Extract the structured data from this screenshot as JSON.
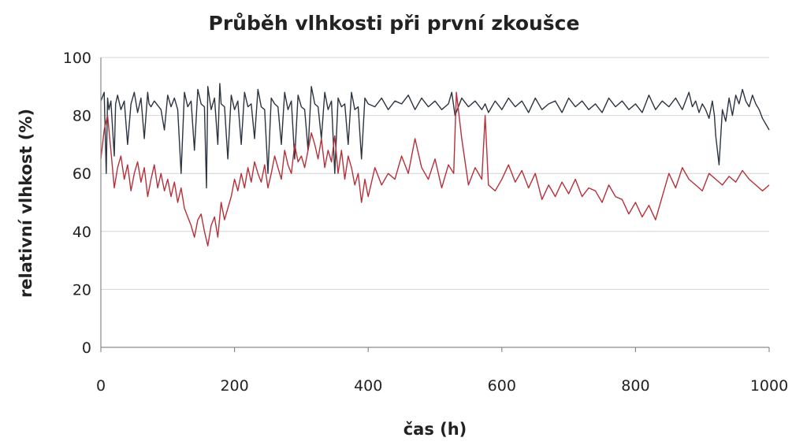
{
  "chart_data": {
    "type": "line",
    "title": "Průběh vlhkosti při první zkoušce",
    "xlabel": "čas (h)",
    "ylabel": "relativní vlhkost (%)",
    "xlim": [
      0,
      1000
    ],
    "ylim": [
      0,
      100
    ],
    "x_ticks": [
      0,
      200,
      400,
      600,
      800,
      1000
    ],
    "y_ticks": [
      0,
      20,
      40,
      60,
      80,
      100
    ],
    "grid": "horizontal",
    "legend": "none",
    "series": [
      {
        "color": "#2b3440",
        "x": [
          0,
          5,
          8,
          10,
          12,
          15,
          20,
          22,
          25,
          30,
          35,
          40,
          45,
          50,
          55,
          60,
          65,
          70,
          72,
          75,
          80,
          90,
          95,
          100,
          105,
          110,
          115,
          120,
          125,
          130,
          135,
          140,
          145,
          150,
          155,
          158,
          160,
          165,
          170,
          175,
          178,
          180,
          185,
          190,
          195,
          200,
          205,
          210,
          215,
          220,
          225,
          230,
          235,
          240,
          245,
          250,
          255,
          260,
          265,
          270,
          275,
          280,
          285,
          290,
          295,
          300,
          305,
          310,
          315,
          320,
          325,
          330,
          335,
          340,
          345,
          350,
          355,
          360,
          365,
          370,
          375,
          380,
          385,
          390,
          395,
          400,
          410,
          420,
          430,
          440,
          450,
          460,
          470,
          480,
          490,
          500,
          510,
          520,
          525,
          530,
          540,
          550,
          560,
          570,
          575,
          580,
          590,
          600,
          610,
          620,
          630,
          640,
          650,
          660,
          670,
          680,
          690,
          700,
          710,
          720,
          730,
          740,
          750,
          760,
          770,
          780,
          790,
          800,
          810,
          820,
          830,
          840,
          850,
          860,
          870,
          880,
          885,
          890,
          895,
          900,
          905,
          910,
          915,
          918,
          920,
          925,
          930,
          935,
          940,
          945,
          950,
          955,
          960,
          965,
          970,
          975,
          980,
          985,
          990,
          995,
          1000
        ],
        "y": [
          85,
          88,
          60,
          86,
          82,
          85,
          66,
          84,
          87,
          82,
          85,
          70,
          84,
          88,
          81,
          86,
          72,
          88,
          84,
          83,
          85,
          82,
          75,
          87,
          83,
          86,
          82,
          60,
          88,
          83,
          85,
          68,
          89,
          84,
          83,
          55,
          90,
          82,
          86,
          70,
          91,
          84,
          83,
          65,
          87,
          82,
          85,
          70,
          88,
          83,
          84,
          72,
          89,
          83,
          82,
          60,
          86,
          84,
          83,
          70,
          88,
          82,
          85,
          65,
          87,
          83,
          82,
          68,
          90,
          84,
          83,
          72,
          88,
          82,
          85,
          60,
          86,
          83,
          84,
          70,
          88,
          82,
          83,
          65,
          86,
          84,
          83,
          86,
          82,
          85,
          84,
          87,
          82,
          86,
          83,
          85,
          82,
          84,
          88,
          80,
          86,
          83,
          85,
          82,
          84,
          81,
          85,
          82,
          86,
          83,
          85,
          81,
          86,
          82,
          84,
          85,
          81,
          86,
          83,
          85,
          82,
          84,
          81,
          86,
          83,
          85,
          82,
          84,
          81,
          87,
          82,
          85,
          83,
          86,
          82,
          88,
          83,
          85,
          81,
          84,
          82,
          79,
          85,
          80,
          73,
          63,
          82,
          78,
          86,
          80,
          87,
          84,
          89,
          85,
          83,
          87,
          84,
          82,
          79,
          77,
          75
        ]
      },
      {
        "color": "#b6303a",
        "x": [
          0,
          5,
          10,
          15,
          20,
          25,
          30,
          35,
          40,
          45,
          50,
          55,
          60,
          65,
          70,
          75,
          80,
          85,
          90,
          95,
          100,
          105,
          110,
          115,
          120,
          125,
          130,
          135,
          140,
          145,
          150,
          155,
          160,
          165,
          170,
          175,
          180,
          185,
          190,
          195,
          200,
          205,
          210,
          215,
          220,
          225,
          230,
          235,
          240,
          245,
          250,
          255,
          260,
          265,
          270,
          275,
          280,
          285,
          290,
          295,
          300,
          305,
          310,
          315,
          320,
          325,
          330,
          335,
          340,
          345,
          350,
          355,
          360,
          365,
          370,
          375,
          380,
          385,
          390,
          395,
          400,
          410,
          420,
          430,
          440,
          450,
          460,
          470,
          480,
          490,
          500,
          510,
          520,
          528,
          532,
          540,
          550,
          560,
          570,
          575,
          580,
          590,
          600,
          610,
          620,
          630,
          640,
          650,
          660,
          670,
          680,
          690,
          700,
          710,
          720,
          730,
          740,
          750,
          760,
          770,
          780,
          790,
          800,
          810,
          820,
          830,
          840,
          850,
          860,
          870,
          880,
          890,
          900,
          910,
          920,
          930,
          940,
          950,
          960,
          970,
          980,
          990,
          1000
        ],
        "y": [
          65,
          75,
          80,
          68,
          55,
          62,
          66,
          58,
          63,
          54,
          60,
          64,
          57,
          62,
          52,
          58,
          63,
          55,
          60,
          54,
          58,
          52,
          57,
          50,
          55,
          48,
          45,
          42,
          38,
          44,
          46,
          40,
          35,
          42,
          45,
          38,
          50,
          44,
          48,
          52,
          58,
          54,
          60,
          55,
          62,
          57,
          64,
          60,
          57,
          63,
          55,
          60,
          66,
          62,
          58,
          68,
          63,
          60,
          70,
          64,
          66,
          62,
          68,
          74,
          70,
          65,
          72,
          62,
          68,
          64,
          73,
          60,
          68,
          58,
          66,
          62,
          56,
          60,
          50,
          58,
          52,
          62,
          56,
          60,
          58,
          66,
          60,
          72,
          62,
          58,
          65,
          55,
          63,
          60,
          88,
          72,
          56,
          62,
          58,
          80,
          56,
          54,
          58,
          63,
          57,
          61,
          55,
          60,
          51,
          56,
          52,
          57,
          53,
          58,
          52,
          55,
          54,
          50,
          56,
          52,
          51,
          46,
          50,
          45,
          49,
          44,
          52,
          60,
          55,
          62,
          58,
          56,
          54,
          60,
          58,
          56,
          59,
          57,
          61,
          58,
          56,
          54,
          56
        ]
      }
    ]
  }
}
